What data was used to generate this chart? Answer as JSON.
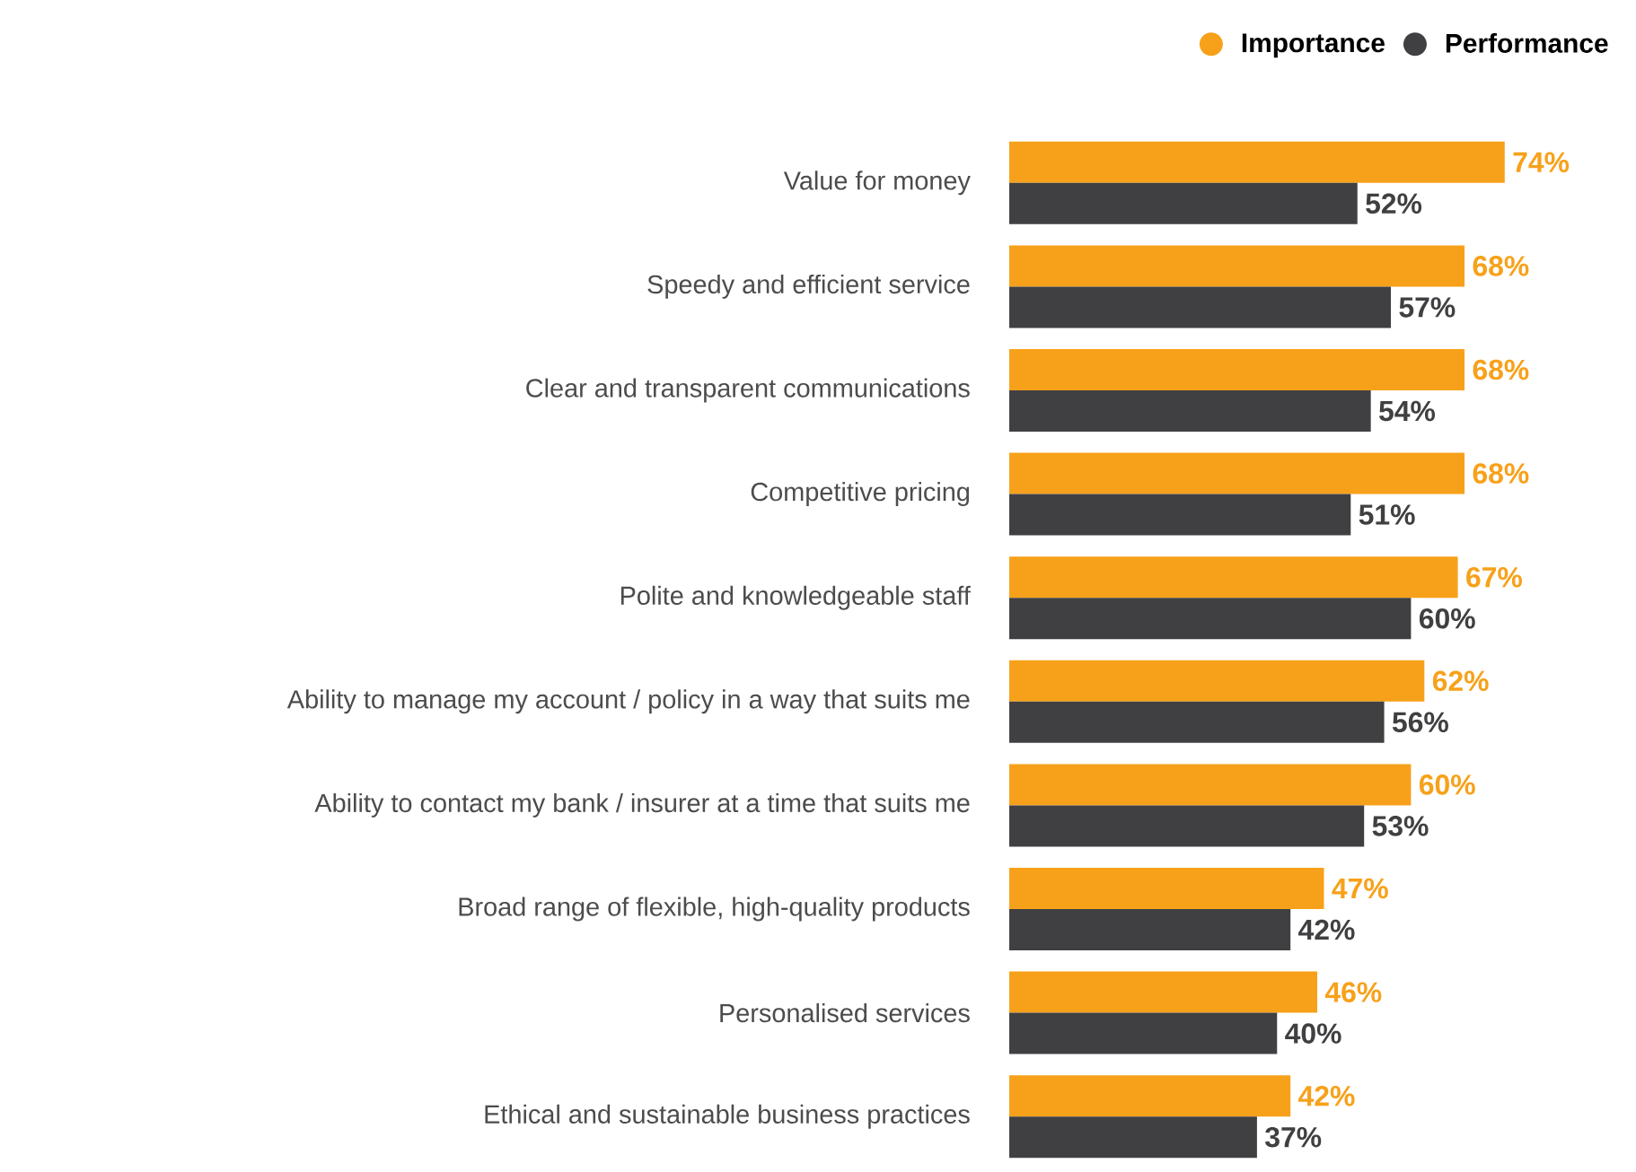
{
  "chart_data": {
    "type": "bar",
    "orientation": "horizontal",
    "legend": "top right",
    "categories": [
      "Value for money",
      "Speedy and efficient service",
      "Clear and transparent communications",
      "Competitive pricing",
      "Polite and knowledgeable staff",
      "Ability to manage my account / policy in a way that suits me",
      "Ability to contact my bank / insurer at a time that suits me",
      "Broad range of flexible, high-quality products",
      "Personalised services",
      "Ethical and sustainable business practices"
    ],
    "series": [
      {
        "name": "Importance",
        "color": "#f7a11a",
        "values": [
          74,
          68,
          68,
          68,
          67,
          62,
          60,
          47,
          46,
          42
        ],
        "value_labels": [
          "74%",
          "68%",
          "68%",
          "68%",
          "67%",
          "62%",
          "60%",
          "47%",
          "46%",
          "42%"
        ]
      },
      {
        "name": "Performance",
        "color": "#404043",
        "values": [
          52,
          57,
          54,
          51,
          60,
          56,
          53,
          42,
          40,
          37
        ],
        "value_labels": [
          "52%",
          "57%",
          "54%",
          "51%",
          "60%",
          "56%",
          "53%",
          "42%",
          "40%",
          "37%"
        ]
      }
    ]
  }
}
